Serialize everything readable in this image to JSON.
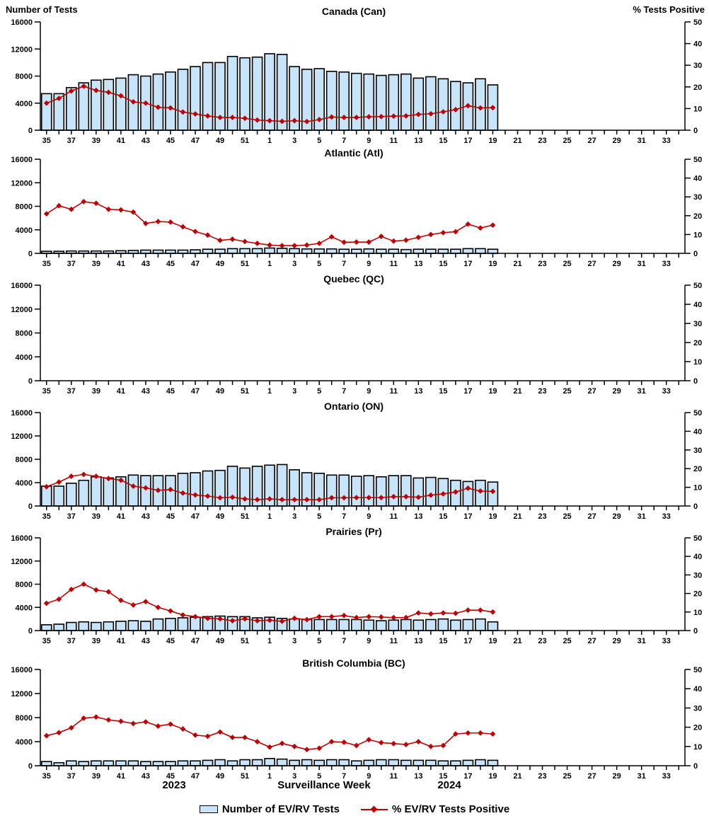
{
  "figure": {
    "left_axis_title": "Number of Tests",
    "right_axis_title": "% Tests Positive",
    "x_axis_title": "Surveillance Week",
    "year_left": "2023",
    "year_right": "2024"
  },
  "legend": {
    "bar_label": "Number of EV/RV Tests",
    "line_label": "% EV/RV Tests Positive"
  },
  "colors": {
    "bar_fill": "#C8E4F8",
    "bar_stroke": "#000000",
    "line": "#C00000",
    "axis": "#000000",
    "background": "#FFFFFF"
  },
  "chart_data": {
    "type": "bar+line",
    "x_axis_label": "Surveillance Week",
    "all_weeks": [
      35,
      36,
      37,
      38,
      39,
      40,
      41,
      42,
      43,
      44,
      45,
      46,
      47,
      48,
      49,
      50,
      51,
      52,
      1,
      2,
      3,
      4,
      5,
      6,
      7,
      8,
      9,
      10,
      11,
      12,
      13,
      14,
      15,
      16,
      17,
      18,
      19,
      20,
      21,
      22,
      23,
      24,
      25,
      26,
      27,
      28,
      29,
      30,
      31,
      32,
      33,
      34
    ],
    "x_tick_labels": [
      35,
      37,
      39,
      41,
      43,
      45,
      47,
      49,
      51,
      1,
      3,
      5,
      7,
      9,
      11,
      13,
      15,
      17,
      19,
      21,
      23,
      25,
      27,
      29,
      31,
      33
    ],
    "weeks_with_data": [
      35,
      36,
      37,
      38,
      39,
      40,
      41,
      42,
      43,
      44,
      45,
      46,
      47,
      48,
      49,
      50,
      51,
      52,
      1,
      2,
      3,
      4,
      5,
      6,
      7,
      8,
      9,
      10,
      11,
      12,
      13,
      14,
      15,
      16,
      17,
      18,
      19
    ],
    "left_axis": {
      "title": "Number of Tests",
      "ticks": [
        0,
        4000,
        8000,
        12000,
        16000
      ],
      "max": 16000
    },
    "right_axis": {
      "title": "% Tests Positive",
      "ticks": [
        0,
        10,
        20,
        30,
        40,
        50
      ],
      "max": 50
    },
    "series_names": [
      "Number of EV/RV Tests",
      "% EV/RV Tests Positive"
    ],
    "panels": [
      {
        "title": "Canada (Can)",
        "tests": [
          5400,
          5400,
          6300,
          7000,
          7400,
          7500,
          7700,
          8200,
          8000,
          8300,
          8600,
          9000,
          9400,
          10000,
          10000,
          10900,
          10700,
          10800,
          11300,
          11200,
          9400,
          9000,
          9100,
          8700,
          8600,
          8400,
          8300,
          8100,
          8200,
          8300,
          7700,
          7900,
          7600,
          7200,
          7000,
          7600,
          6700
        ],
        "pct_positive": [
          12.5,
          14.7,
          18.1,
          20.3,
          18.4,
          17.5,
          15.9,
          13.1,
          12.5,
          10.6,
          10.3,
          8.4,
          7.5,
          6.6,
          5.9,
          5.9,
          5.5,
          4.7,
          4.4,
          4.1,
          4.4,
          4.0,
          4.9,
          6.1,
          5.9,
          5.9,
          6.2,
          6.3,
          6.5,
          6.6,
          7.3,
          7.6,
          8.5,
          9.5,
          11.3,
          10.3,
          10.4
        ]
      },
      {
        "title": "Atlantic (Atl)",
        "tests": [
          350,
          350,
          400,
          400,
          400,
          400,
          450,
          500,
          550,
          550,
          550,
          550,
          600,
          700,
          700,
          800,
          800,
          800,
          900,
          850,
          800,
          750,
          750,
          750,
          700,
          700,
          750,
          700,
          700,
          650,
          700,
          700,
          700,
          700,
          800,
          800,
          700
        ],
        "pct_positive": [
          21.0,
          25.3,
          23.4,
          27.5,
          26.6,
          23.4,
          23.1,
          21.9,
          15.9,
          16.9,
          16.6,
          14.1,
          11.6,
          9.7,
          6.9,
          7.5,
          6.3,
          5.3,
          4.4,
          4.1,
          4.1,
          4.4,
          5.3,
          8.8,
          5.9,
          6.0,
          6.0,
          9.0,
          6.5,
          7.0,
          8.5,
          10.0,
          11.0,
          11.5,
          15.5,
          13.5,
          15.0
        ]
      },
      {
        "title": "Quebec (QC)",
        "tests": [],
        "pct_positive": []
      },
      {
        "title": "Ontario (ON)",
        "tests": [
          3400,
          3400,
          3900,
          4400,
          5000,
          4800,
          5000,
          5300,
          5200,
          5200,
          5200,
          5600,
          5700,
          6000,
          6100,
          6800,
          6500,
          6800,
          7000,
          7100,
          6200,
          5700,
          5600,
          5300,
          5300,
          5100,
          5200,
          5000,
          5200,
          5200,
          4800,
          4900,
          4700,
          4400,
          4200,
          4400,
          4100
        ],
        "pct_positive": [
          10.3,
          12.8,
          15.9,
          16.9,
          15.9,
          14.7,
          13.8,
          10.6,
          9.7,
          8.4,
          8.8,
          6.9,
          5.9,
          5.3,
          4.4,
          4.7,
          3.8,
          3.4,
          3.8,
          3.4,
          3.4,
          3.4,
          3.4,
          4.4,
          4.4,
          4.5,
          4.5,
          4.5,
          5.0,
          5.0,
          4.7,
          5.8,
          6.5,
          7.5,
          9.5,
          8.0,
          7.8
        ]
      },
      {
        "title": "Prairies (Pr)",
        "tests": [
          1000,
          1100,
          1400,
          1500,
          1400,
          1500,
          1600,
          1700,
          1600,
          2000,
          2100,
          2200,
          2300,
          2400,
          2500,
          2400,
          2400,
          2200,
          2300,
          2100,
          2000,
          1900,
          1900,
          1900,
          1900,
          1900,
          1800,
          1700,
          1800,
          1900,
          1800,
          1900,
          2000,
          1800,
          1900,
          2000,
          1500
        ],
        "pct_positive": [
          14.7,
          16.9,
          22.2,
          25.0,
          21.9,
          20.9,
          16.3,
          13.8,
          15.6,
          12.5,
          10.6,
          8.4,
          7.5,
          6.6,
          6.3,
          5.3,
          6.3,
          5.3,
          5.6,
          5.0,
          6.6,
          5.9,
          7.5,
          7.5,
          8.1,
          7.0,
          7.5,
          7.3,
          7.0,
          7.0,
          9.5,
          9.0,
          9.5,
          9.3,
          11.0,
          11.0,
          10.0
        ]
      },
      {
        "title": "British Columbia (BC)",
        "tests": [
          700,
          500,
          800,
          700,
          800,
          800,
          800,
          800,
          700,
          700,
          700,
          800,
          800,
          900,
          1000,
          800,
          1000,
          1000,
          1200,
          1100,
          900,
          1000,
          900,
          1000,
          1000,
          800,
          900,
          1000,
          1000,
          900,
          900,
          900,
          800,
          800,
          900,
          1000,
          900
        ],
        "pct_positive": [
          15.6,
          17.2,
          19.7,
          24.7,
          25.3,
          23.8,
          23.1,
          21.9,
          22.8,
          20.6,
          21.6,
          19.1,
          15.9,
          15.3,
          17.5,
          14.7,
          14.7,
          12.5,
          9.7,
          11.6,
          10.0,
          8.4,
          9.1,
          12.5,
          12.2,
          10.5,
          13.5,
          12.0,
          11.5,
          11.0,
          12.5,
          10.0,
          10.5,
          16.5,
          17.0,
          17.0,
          16.5
        ]
      }
    ]
  }
}
